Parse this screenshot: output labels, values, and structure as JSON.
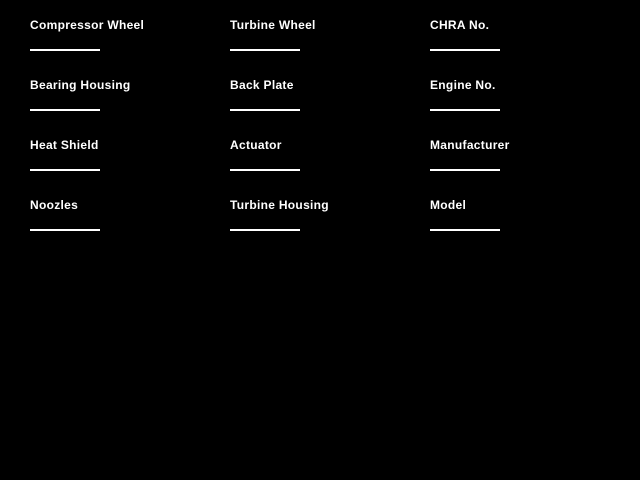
{
  "window": {
    "background_color": "#000000",
    "text_color": "#ffffff"
  },
  "form": {
    "columns": [
      {
        "fields": [
          {
            "label": "Compressor Wheel",
            "value": ""
          },
          {
            "label": "Bearing Housing",
            "value": ""
          },
          {
            "label": "Heat Shield",
            "value": ""
          },
          {
            "label": "Noozles",
            "value": ""
          }
        ]
      },
      {
        "fields": [
          {
            "label": "Turbine Wheel",
            "value": ""
          },
          {
            "label": "Back Plate",
            "value": ""
          },
          {
            "label": "Actuator",
            "value": ""
          },
          {
            "label": "Turbine Housing",
            "value": ""
          }
        ]
      },
      {
        "fields": [
          {
            "label": "CHRA No.",
            "value": ""
          },
          {
            "label": "Engine No.",
            "value": ""
          },
          {
            "label": "Manufacturer",
            "value": ""
          },
          {
            "label": "Model",
            "value": ""
          }
        ]
      }
    ]
  }
}
